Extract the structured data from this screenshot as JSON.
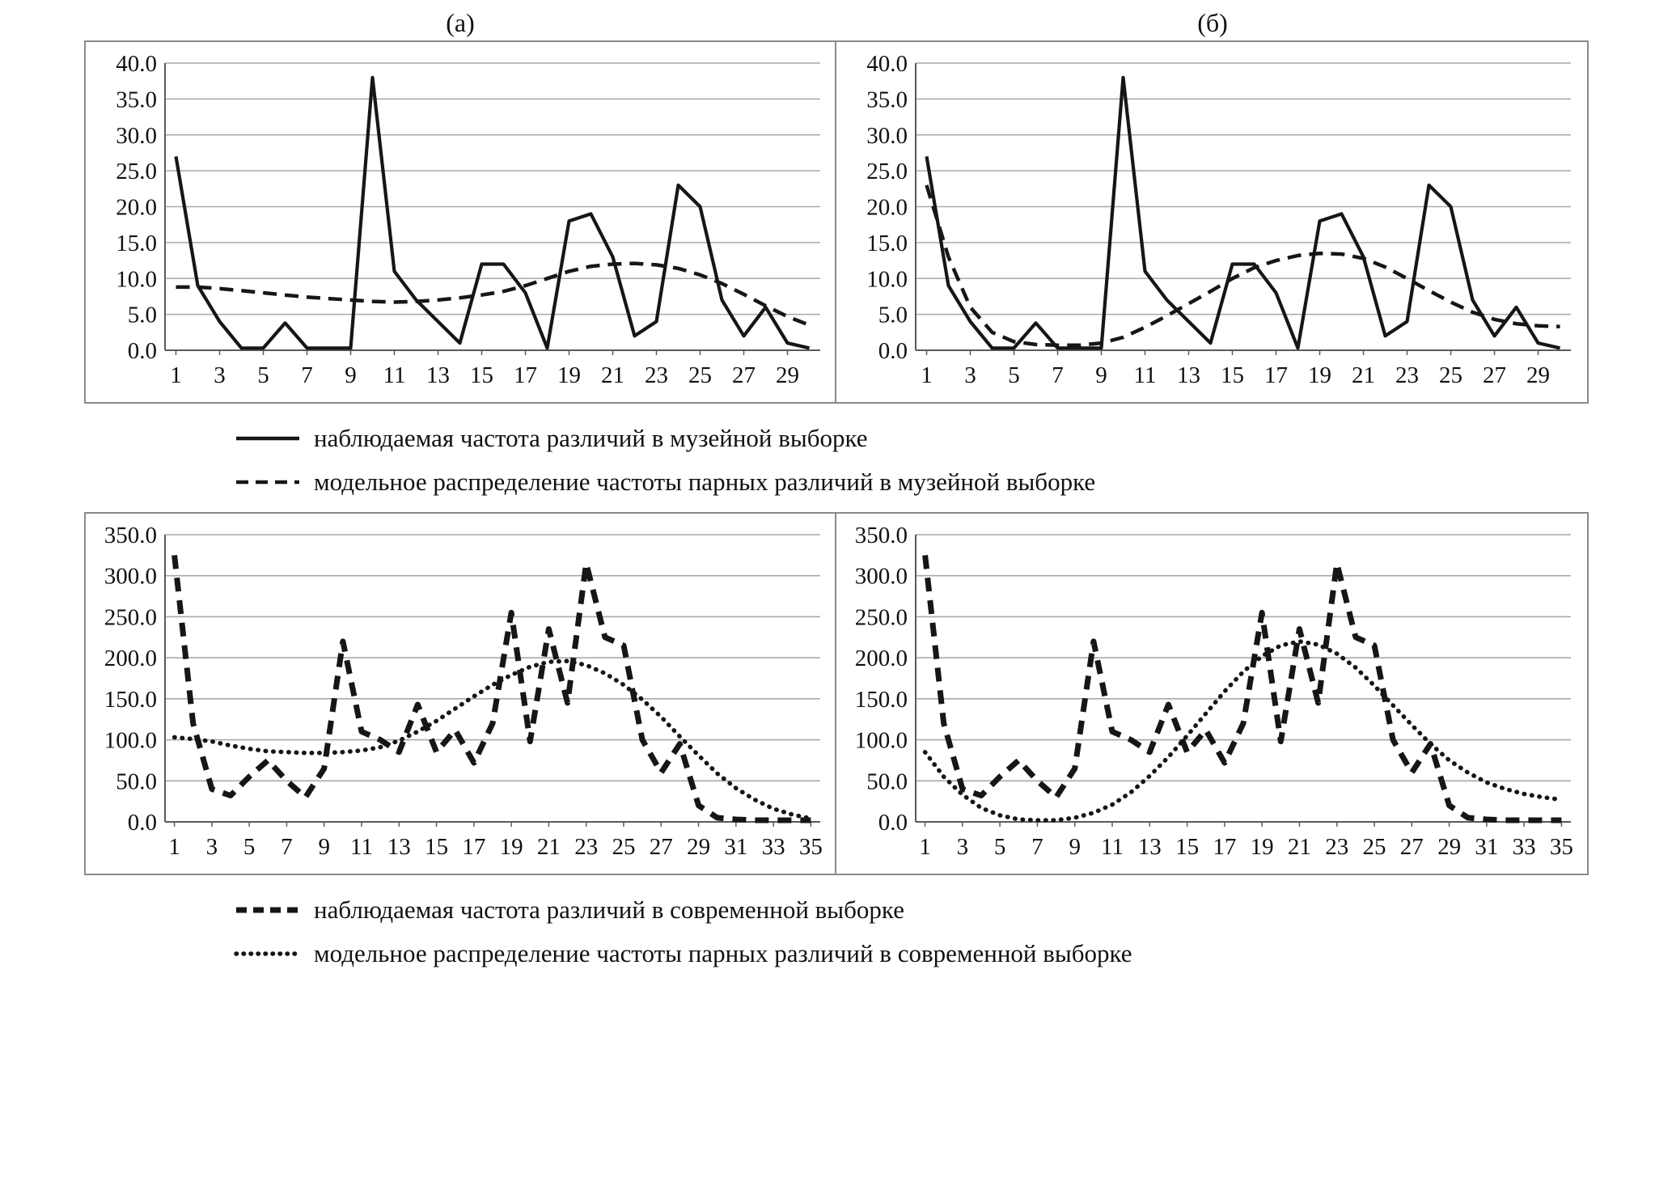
{
  "figure": {
    "panel_labels": {
      "a": "(а)",
      "b": "(б)"
    },
    "colors": {
      "line": "#161616",
      "grid": "#a9a9a9",
      "axis": "#5a5a5a",
      "border": "#8a8a8a"
    }
  },
  "legends": {
    "top": [
      {
        "style": "solid",
        "label": "наблюдаемая частота различий в музейной выборке"
      },
      {
        "style": "dashed",
        "label": "модельное распределение частоты парных различий в музейной выборке"
      }
    ],
    "bottom": [
      {
        "style": "heavy-dashed",
        "label": "наблюдаемая частота различий в современной выборке"
      },
      {
        "style": "dotted",
        "label": "модельное распределение частоты парных различий в современной выборке"
      }
    ]
  },
  "chart_data": [
    {
      "id": "top-left",
      "type": "line",
      "panel": "(а) museum sample",
      "ylim": [
        0,
        40
      ],
      "yticks": [
        "0.0",
        "5.0",
        "10.0",
        "15.0",
        "20.0",
        "25.0",
        "30.0",
        "35.0",
        "40.0"
      ],
      "xticks": [
        1,
        3,
        5,
        7,
        9,
        11,
        13,
        15,
        17,
        19,
        21,
        23,
        25,
        27,
        29
      ],
      "x_count": 30,
      "grid": true,
      "series": [
        {
          "name": "наблюдаемая частота различий в музейной выборке",
          "style": "solid",
          "values": [
            27,
            9,
            4,
            0.3,
            0.3,
            3.8,
            0.3,
            0.3,
            0.3,
            38,
            11,
            7,
            4,
            1,
            12,
            12,
            8,
            0.3,
            18,
            19,
            13,
            2,
            4,
            23,
            20,
            7,
            2,
            6,
            1,
            0.3
          ]
        },
        {
          "name": "модельное распределение частоты парных различий в музейной выборке",
          "style": "dashed",
          "values": [
            8.8,
            8.8,
            8.6,
            8.3,
            8.0,
            7.7,
            7.4,
            7.2,
            7.0,
            6.8,
            6.7,
            6.8,
            7.0,
            7.3,
            7.7,
            8.2,
            9.0,
            10.0,
            11.0,
            11.7,
            12.0,
            12.1,
            11.9,
            11.4,
            10.5,
            9.3,
            7.8,
            6.2,
            4.7,
            3.5
          ]
        }
      ]
    },
    {
      "id": "top-right",
      "type": "line",
      "panel": "(б) museum sample",
      "ylim": [
        0,
        40
      ],
      "yticks": [
        "0.0",
        "5.0",
        "10.0",
        "15.0",
        "20.0",
        "25.0",
        "30.0",
        "35.0",
        "40.0"
      ],
      "xticks": [
        1,
        3,
        5,
        7,
        9,
        11,
        13,
        15,
        17,
        19,
        21,
        23,
        25,
        27,
        29
      ],
      "x_count": 30,
      "grid": true,
      "series": [
        {
          "name": "наблюдаемая частота различий в музейной выборке",
          "style": "solid",
          "values": [
            27,
            9,
            4,
            0.3,
            0.3,
            3.8,
            0.3,
            0.3,
            0.3,
            38,
            11,
            7,
            4,
            1,
            12,
            12,
            8,
            0.3,
            18,
            19,
            13,
            2,
            4,
            23,
            20,
            7,
            2,
            6,
            1,
            0.3
          ]
        },
        {
          "name": "модельное распределение частоты парных различий в музейной выборке",
          "style": "dashed",
          "values": [
            23,
            13,
            6,
            2.5,
            1.2,
            0.8,
            0.7,
            0.7,
            1.0,
            1.8,
            3.2,
            4.8,
            6.5,
            8.2,
            10.0,
            11.5,
            12.5,
            13.2,
            13.5,
            13.4,
            12.8,
            11.6,
            10.0,
            8.3,
            6.7,
            5.3,
            4.3,
            3.7,
            3.4,
            3.3
          ]
        }
      ]
    },
    {
      "id": "bottom-left",
      "type": "line",
      "panel": "(а) modern sample",
      "ylim": [
        0,
        350
      ],
      "yticks": [
        "0.0",
        "50.0",
        "100.0",
        "150.0",
        "200.0",
        "250.0",
        "300.0",
        "350.0"
      ],
      "xticks": [
        1,
        3,
        5,
        7,
        9,
        11,
        13,
        15,
        17,
        19,
        21,
        23,
        25,
        27,
        29,
        31,
        33,
        35
      ],
      "x_count": 35,
      "grid": true,
      "series": [
        {
          "name": "наблюдаемая частота различий в современной выборке",
          "style": "heavy-dashed",
          "values": [
            325,
            120,
            40,
            32,
            55,
            75,
            50,
            30,
            65,
            220,
            110,
            100,
            85,
            143,
            85,
            112,
            72,
            120,
            255,
            98,
            235,
            145,
            315,
            225,
            215,
            100,
            60,
            95,
            20,
            5,
            3,
            2,
            2,
            2,
            2
          ]
        },
        {
          "name": "модельное распределение частоты парных различий в современной выборке",
          "style": "dotted",
          "values": [
            103,
            101,
            98,
            93,
            89,
            86,
            85,
            84,
            84,
            85,
            87,
            91,
            99,
            110,
            123,
            138,
            153,
            167,
            179,
            189,
            195,
            196,
            191,
            181,
            167,
            149,
            128,
            104,
            81,
            59,
            41,
            27,
            16,
            9,
            4
          ]
        }
      ]
    },
    {
      "id": "bottom-right",
      "type": "line",
      "panel": "(б) modern sample",
      "ylim": [
        0,
        350
      ],
      "yticks": [
        "0.0",
        "50.0",
        "100.0",
        "150.0",
        "200.0",
        "250.0",
        "300.0",
        "350.0"
      ],
      "xticks": [
        1,
        3,
        5,
        7,
        9,
        11,
        13,
        15,
        17,
        19,
        21,
        23,
        25,
        27,
        29,
        31,
        33,
        35
      ],
      "x_count": 35,
      "grid": true,
      "series": [
        {
          "name": "наблюдаемая частота различий в современной выборке",
          "style": "heavy-dashed",
          "values": [
            325,
            120,
            40,
            32,
            55,
            75,
            50,
            30,
            65,
            220,
            110,
            100,
            85,
            143,
            85,
            112,
            72,
            120,
            255,
            98,
            235,
            145,
            315,
            225,
            215,
            100,
            60,
            95,
            20,
            5,
            3,
            2,
            2,
            2,
            2
          ]
        },
        {
          "name": "модельное распределение частоты парных различий в современной выборке",
          "style": "dotted",
          "values": [
            85,
            55,
            33,
            17,
            8,
            3,
            2,
            2,
            5,
            11,
            21,
            36,
            56,
            79,
            105,
            132,
            159,
            183,
            202,
            215,
            220,
            216,
            205,
            188,
            166,
            142,
            118,
            95,
            75,
            60,
            48,
            40,
            34,
            30,
            27
          ]
        }
      ]
    }
  ]
}
